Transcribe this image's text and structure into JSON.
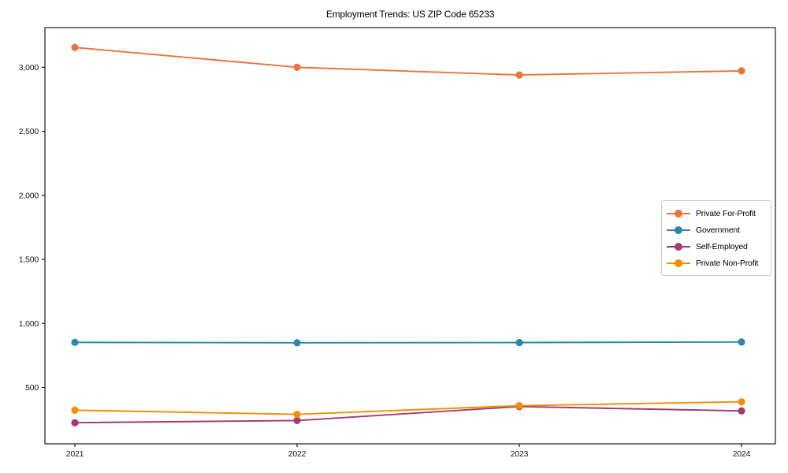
{
  "chart_data": {
    "type": "line",
    "title": "Employment Trends: US ZIP Code 65233",
    "xlabel": "",
    "ylabel": "",
    "x_categories": [
      "2021",
      "2022",
      "2023",
      "2024"
    ],
    "series": [
      {
        "name": "Private For-Profit",
        "color": "#E8743B",
        "values": [
          3155,
          3000,
          2940,
          2972
        ]
      },
      {
        "name": "Government",
        "color": "#2E86AB",
        "values": [
          852,
          849,
          851,
          855
        ]
      },
      {
        "name": "Self-Employed",
        "color": "#A23B72",
        "values": [
          225,
          242,
          351,
          317
        ]
      },
      {
        "name": "Private Non-Profit",
        "color": "#F18F01",
        "values": [
          323,
          290,
          358,
          388
        ]
      }
    ],
    "yticks": [
      500,
      1000,
      1500,
      2000,
      2500,
      3000
    ],
    "ytick_labels": [
      "500",
      "1,000",
      "1,500",
      "2,000",
      "2,500",
      "3,000"
    ],
    "ylim": [
      60,
      3310
    ],
    "grid": false,
    "marker": "circle",
    "legend_position": "middle-right",
    "legend_entries": [
      "Private For-Profit",
      "Government",
      "Self-Employed",
      "Private Non-Profit"
    ]
  },
  "style": {
    "axis_color": "#1a1a1a",
    "tick_text_color": "#1a1a1a",
    "background": "#ffffff",
    "legend_border_color": "#cccccc"
  }
}
